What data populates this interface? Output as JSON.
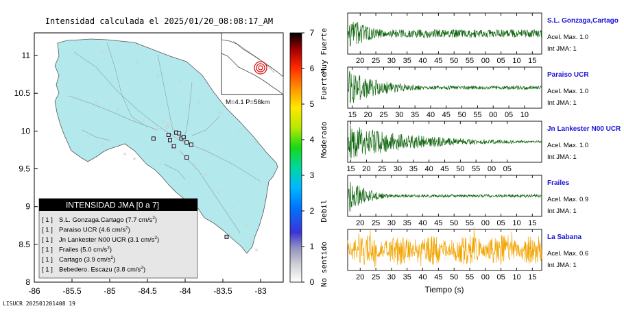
{
  "title": "Intensidad calculada el 2025/01/20_08:08:17_AM",
  "footer_id": "LISUCR 202501201408 19",
  "inset_label": "M=4.1 P=56km",
  "colors": {
    "land": "#b3e9ec",
    "trace_green": "#116611",
    "trace_orange": "#f2a400",
    "station_name": "#1a14d8"
  },
  "chart_data": [
    {
      "type": "scatter",
      "name": "map",
      "xlim": [
        -86,
        -82.7
      ],
      "ylim": [
        8,
        11.3
      ],
      "x_ticks": [
        "-86",
        "-85.5",
        "-85",
        "-84.5",
        "-84",
        "-83.5",
        "-83"
      ],
      "y_ticks": [
        "8",
        "8.5",
        "9",
        "9.5",
        "10",
        "10.5",
        "11"
      ],
      "stations": [
        {
          "lon": -84.12,
          "lat": 9.98
        },
        {
          "lon": -84.05,
          "lat": 9.9
        },
        {
          "lon": -83.98,
          "lat": 9.85
        },
        {
          "lon": -84.2,
          "lat": 9.88
        },
        {
          "lon": -84.15,
          "lat": 9.8
        },
        {
          "lon": -84.08,
          "lat": 9.97
        },
        {
          "lon": -83.92,
          "lat": 9.82
        },
        {
          "lon": -84.22,
          "lat": 9.95
        },
        {
          "lon": -84.42,
          "lat": 9.9
        },
        {
          "lon": -83.98,
          "lat": 9.65
        },
        {
          "lon": -84.02,
          "lat": 9.92
        },
        {
          "lon": -83.45,
          "lat": 8.6
        }
      ]
    },
    {
      "type": "colorbar",
      "name": "scale",
      "range": [
        0,
        7
      ],
      "ticks": [
        "0",
        "1",
        "2",
        "3",
        "4",
        "5",
        "6",
        "7"
      ],
      "labels": [
        "No sentido",
        "Debil",
        "Moderado",
        "Fuerte",
        "Muy Fuerte"
      ]
    },
    {
      "type": "table",
      "name": "legend",
      "header": "INTENSIDAD JMA [0 a 7]",
      "rows": [
        {
          "level": "[ 1 ]",
          "station": "S.L. Gonzaga.Cartago",
          "accel": "(7.7 cm/s",
          "exp": "2",
          "close": ")"
        },
        {
          "level": "[ 1 ]",
          "station": "Paraiso UCR",
          "accel": "(4.6 cm/s",
          "exp": "2",
          "close": ")"
        },
        {
          "level": "[ 1 ]",
          "station": "Jn Lankester N00 UCR",
          "accel": "(3.1 cm/s",
          "exp": "2",
          "close": ")"
        },
        {
          "level": "[ 1 ]",
          "station": "Frailes",
          "accel": "(5.0 cm/s",
          "exp": "2",
          "close": ")"
        },
        {
          "level": "[ 1 ]",
          "station": "Cartago",
          "accel": "(3.9 cm/s",
          "exp": "2",
          "close": ")"
        },
        {
          "level": "[ 1 ]",
          "station": "Bebedero. Escazu",
          "accel": "(3.8 cm/s",
          "exp": "2",
          "close": ")"
        }
      ]
    },
    {
      "type": "line",
      "name": "seismograms",
      "xlabel": "Tiempo (s)",
      "traces": [
        {
          "station": "S.L. Gonzaga,Cartago",
          "accel": "Acel. Max. 1.0",
          "int": "Int JMA: 1",
          "color": "#116611",
          "ticks": [
            "20",
            "25",
            "30",
            "35",
            "40",
            "45",
            "50",
            "55",
            "00",
            "05",
            "10",
            "15"
          ],
          "first_tick": 19,
          "decay": 0.12,
          "noise": 0.22
        },
        {
          "station": "Paraiso UCR",
          "accel": "Acel. Max. 1.0",
          "int": "Int JMA: 1",
          "color": "#116611",
          "ticks": [
            "15",
            "20",
            "25",
            "30",
            "35",
            "40",
            "45",
            "50",
            "55",
            "00",
            "05",
            "10"
          ],
          "first_tick": 16.5,
          "decay": 0.18,
          "noise": 0.1
        },
        {
          "station": "Jn Lankester N00 UCR",
          "accel": "Acel. Max. 1.0",
          "int": "Int JMA: 1",
          "color": "#116611",
          "ticks": [
            "10",
            "15",
            "20",
            "25",
            "30",
            "35",
            "40",
            "45",
            "50",
            "55",
            "00",
            "05"
          ],
          "first_tick": 11,
          "decay": 0.35,
          "noise": 0.03
        },
        {
          "station": "Frailes",
          "accel": "Acel. Max. 0.9",
          "int": "Int JMA: 1",
          "color": "#116611",
          "ticks": [
            "20",
            "25",
            "30",
            "35",
            "40",
            "45",
            "50",
            "55",
            "00",
            "05",
            "10",
            "15"
          ],
          "first_tick": 19,
          "decay": 0.1,
          "noise": 0.08
        },
        {
          "station": "La Sabana",
          "accel": "Acel. Max. 0.6",
          "int": "Int JMA: 1",
          "color": "#f2a400",
          "ticks": [
            "20",
            "25",
            "30",
            "35",
            "40",
            "45",
            "50",
            "55",
            "00",
            "05",
            "10",
            "15"
          ],
          "first_tick": 19,
          "decay": 0.0,
          "noise": 0.55
        }
      ]
    }
  ]
}
